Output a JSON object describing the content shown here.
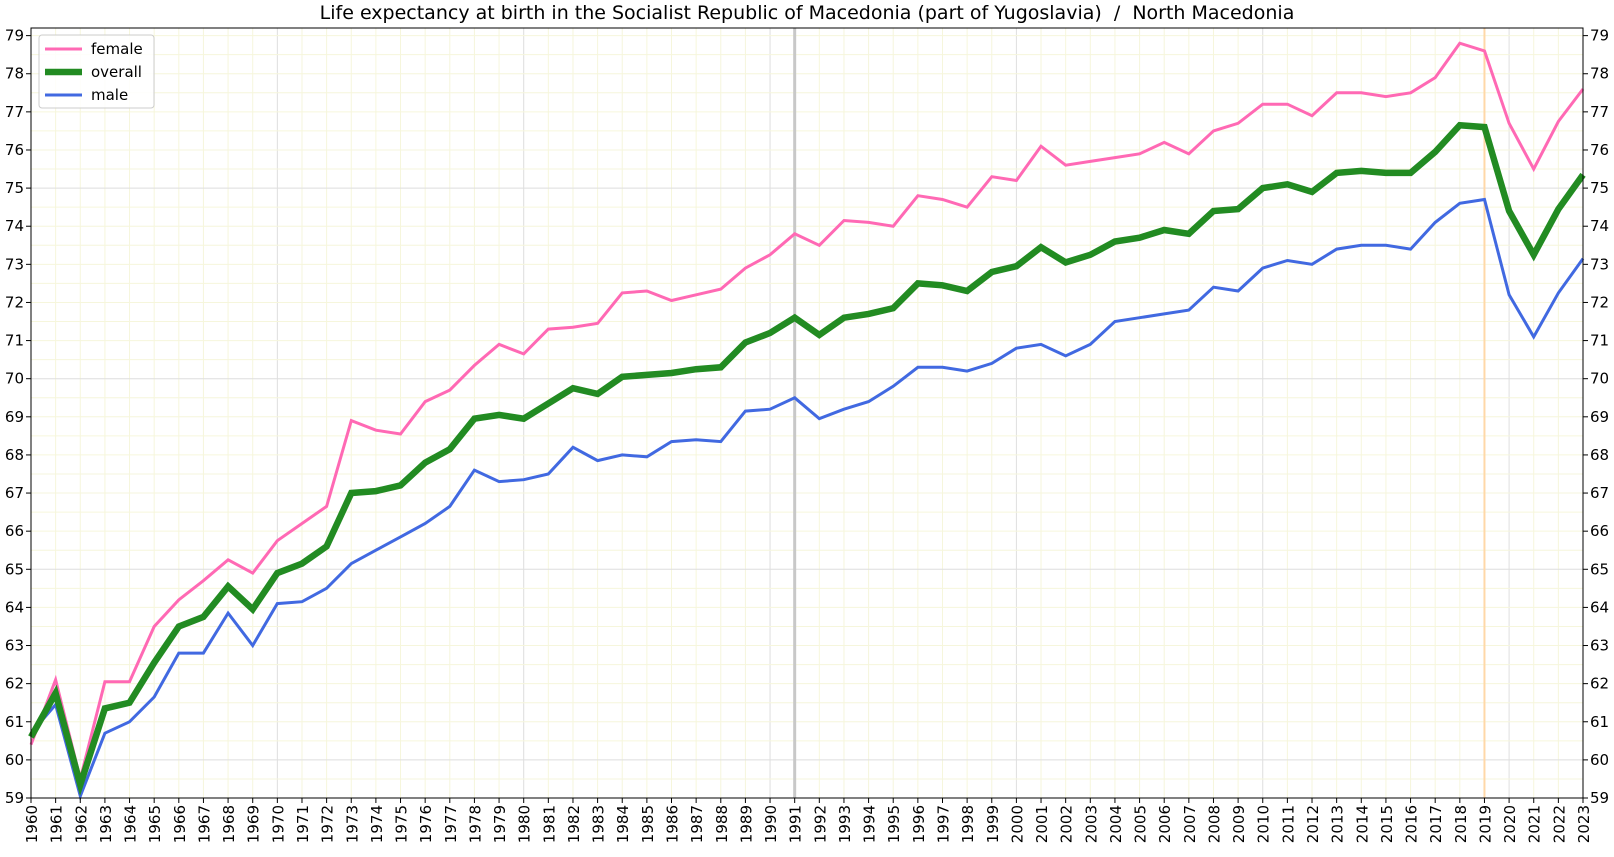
{
  "chart_data": {
    "type": "line",
    "title": "Life expectancy at birth in the Socialist Republic of Macedonia (part of Yugoslavia)  /  North Macedonia",
    "xlabel": "",
    "ylabel": "",
    "xlim": [
      1960,
      2023
    ],
    "ylim": [
      59,
      79.2
    ],
    "grid": true,
    "legend_position": "top-left",
    "x": [
      1960,
      1961,
      1962,
      1963,
      1964,
      1965,
      1966,
      1967,
      1968,
      1969,
      1970,
      1971,
      1972,
      1973,
      1974,
      1975,
      1976,
      1977,
      1978,
      1979,
      1980,
      1981,
      1982,
      1983,
      1984,
      1985,
      1986,
      1987,
      1988,
      1989,
      1990,
      1991,
      1992,
      1993,
      1994,
      1995,
      1996,
      1997,
      1998,
      1999,
      2000,
      2001,
      2002,
      2003,
      2004,
      2005,
      2006,
      2007,
      2008,
      2009,
      2010,
      2011,
      2012,
      2013,
      2014,
      2015,
      2016,
      2017,
      2018,
      2019,
      2020,
      2021,
      2022,
      2023
    ],
    "series": [
      {
        "name": "female",
        "color": "#ff69b4",
        "values": [
          60.4,
          62.1,
          59.5,
          62.05,
          62.05,
          63.5,
          64.2,
          64.7,
          65.25,
          64.9,
          65.75,
          66.2,
          66.65,
          68.9,
          68.65,
          68.55,
          69.4,
          69.7,
          70.35,
          70.9,
          70.65,
          71.3,
          71.35,
          71.45,
          72.25,
          72.3,
          72.05,
          72.2,
          72.35,
          72.9,
          73.25,
          73.8,
          73.5,
          74.15,
          74.1,
          74.0,
          74.8,
          74.7,
          74.5,
          75.3,
          75.2,
          76.1,
          75.6,
          75.7,
          75.8,
          75.9,
          76.2,
          75.9,
          76.5,
          76.7,
          77.2,
          77.2,
          76.9,
          77.5,
          77.5,
          77.4,
          77.5,
          77.9,
          78.8,
          78.6,
          76.7,
          75.5,
          76.75,
          77.6
        ]
      },
      {
        "name": "overall",
        "color": "#228b22",
        "values": [
          60.6,
          61.75,
          59.35,
          61.35,
          61.5,
          62.55,
          63.5,
          63.75,
          64.55,
          63.95,
          64.9,
          65.15,
          65.6,
          67.0,
          67.05,
          67.2,
          67.8,
          68.15,
          68.95,
          69.05,
          68.95,
          69.35,
          69.75,
          69.6,
          70.05,
          70.1,
          70.15,
          70.25,
          70.3,
          70.95,
          71.2,
          71.6,
          71.15,
          71.6,
          71.7,
          71.85,
          72.5,
          72.45,
          72.3,
          72.8,
          72.95,
          73.45,
          73.05,
          73.25,
          73.6,
          73.7,
          73.9,
          73.8,
          74.4,
          74.45,
          75.0,
          75.1,
          74.9,
          75.4,
          75.45,
          75.4,
          75.4,
          75.95,
          76.65,
          76.6,
          74.4,
          73.25,
          74.45,
          75.35
        ]
      },
      {
        "name": "male",
        "color": "#4169e1",
        "values": [
          60.7,
          61.45,
          59.05,
          60.7,
          61.0,
          61.65,
          62.8,
          62.8,
          63.85,
          63.0,
          64.1,
          64.15,
          64.5,
          65.15,
          65.5,
          65.85,
          66.2,
          66.65,
          67.6,
          67.3,
          67.35,
          67.5,
          68.2,
          67.85,
          68.0,
          67.95,
          68.35,
          68.4,
          68.35,
          69.15,
          69.2,
          69.5,
          68.95,
          69.2,
          69.4,
          69.8,
          70.3,
          70.3,
          70.2,
          70.4,
          70.8,
          70.9,
          70.6,
          70.9,
          71.5,
          71.6,
          71.7,
          71.8,
          72.4,
          72.3,
          72.9,
          73.1,
          73.0,
          73.4,
          73.5,
          73.5,
          73.4,
          74.1,
          74.6,
          74.7,
          72.2,
          71.1,
          72.25,
          73.15
        ]
      }
    ],
    "y_ticks": [
      59,
      60,
      61,
      62,
      63,
      64,
      65,
      66,
      67,
      68,
      69,
      70,
      71,
      72,
      73,
      74,
      75,
      76,
      77,
      78,
      79
    ],
    "markers": [
      {
        "x": 1991,
        "color": "#c8c8c8"
      },
      {
        "x": 2019,
        "color": "#ffd8a8"
      }
    ]
  }
}
